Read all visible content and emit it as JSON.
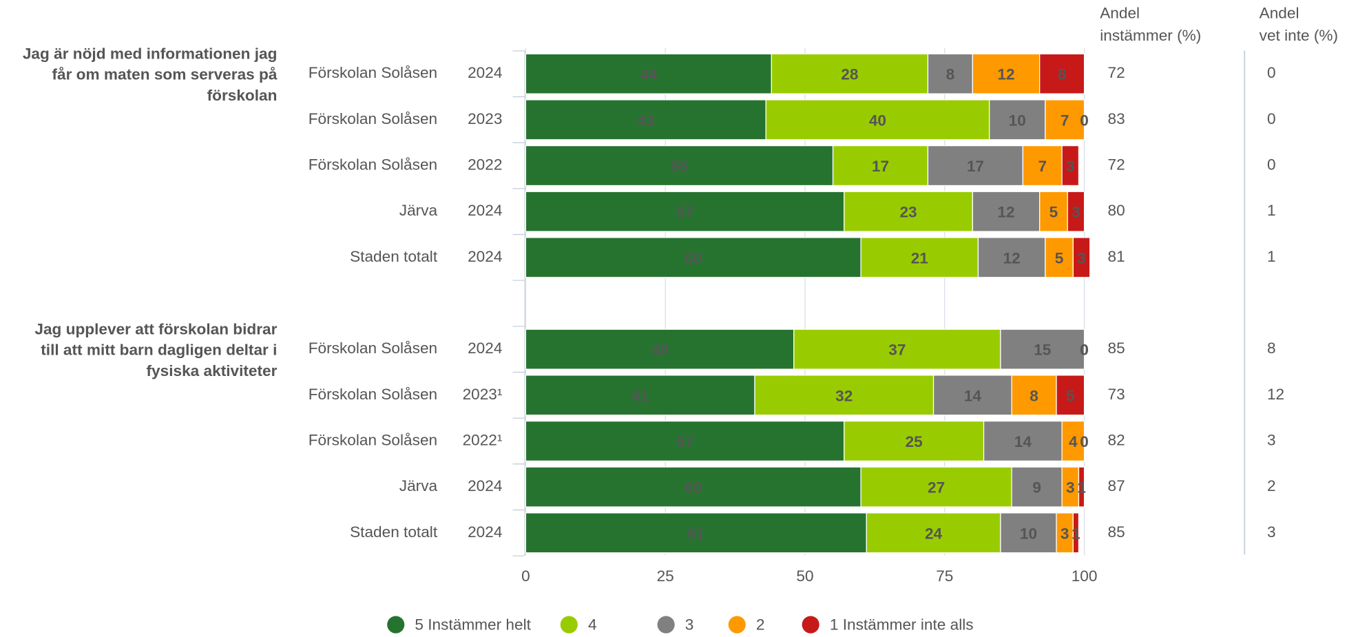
{
  "chart_data": {
    "type": "bar",
    "orientation": "horizontal",
    "stacked": true,
    "xlim": [
      0,
      100
    ],
    "xticks": [
      0,
      25,
      50,
      75,
      100
    ],
    "grid": true,
    "headers": [
      [
        "Andel",
        "instämmer (%)"
      ],
      [
        "Andel",
        "vet inte (%)"
      ]
    ],
    "series": [
      {
        "name": "5 Instämmer helt",
        "color": "#267330",
        "label_color": "#ffffff"
      },
      {
        "name": "4",
        "color": "#99cc00",
        "label_color": "#222222"
      },
      {
        "name": "3",
        "color": "#808080",
        "label_color": "#222222"
      },
      {
        "name": "2",
        "color": "#ff9900",
        "label_color": "#222222"
      },
      {
        "name": "1 Instämmer inte alls",
        "color": "#c81919",
        "label_color": "#ffffff"
      }
    ],
    "groups": [
      {
        "title": [
          "Jag är nöjd med informationen jag",
          "får om maten som serveras på",
          "förskolan"
        ],
        "rows": [
          {
            "label": "Förskolan Solåsen",
            "year": "2024",
            "values": [
              44,
              28,
              8,
              12,
              8
            ],
            "agree": 72,
            "dont_know": 0
          },
          {
            "label": "Förskolan Solåsen",
            "year": "2023",
            "values": [
              43,
              40,
              10,
              7,
              0
            ],
            "agree": 83,
            "dont_know": 0
          },
          {
            "label": "Förskolan Solåsen",
            "year": "2022",
            "values": [
              55,
              17,
              17,
              7,
              3
            ],
            "agree": 72,
            "dont_know": 0
          },
          {
            "label": "Järva",
            "year": "2024",
            "values": [
              57,
              23,
              12,
              5,
              3
            ],
            "agree": 80,
            "dont_know": 1
          },
          {
            "label": "Staden totalt",
            "year": "2024",
            "values": [
              60,
              21,
              12,
              5,
              3
            ],
            "agree": 81,
            "dont_know": 1
          }
        ]
      },
      {
        "title": [
          "Jag upplever att förskolan bidrar",
          "till att mitt barn dagligen deltar i",
          "fysiska aktiviteter"
        ],
        "rows": [
          {
            "label": "Förskolan Solåsen",
            "year": "2024",
            "values": [
              48,
              37,
              15,
              0,
              0
            ],
            "agree": 85,
            "dont_know": 8
          },
          {
            "label": "Förskolan Solåsen",
            "year": "2023¹",
            "values": [
              41,
              32,
              14,
              8,
              5
            ],
            "agree": 73,
            "dont_know": 12
          },
          {
            "label": "Förskolan Solåsen",
            "year": "2022¹",
            "values": [
              57,
              25,
              14,
              4,
              0
            ],
            "agree": 82,
            "dont_know": 3
          },
          {
            "label": "Järva",
            "year": "2024",
            "values": [
              60,
              27,
              9,
              3,
              1
            ],
            "agree": 87,
            "dont_know": 2
          },
          {
            "label": "Staden totalt",
            "year": "2024",
            "values": [
              61,
              24,
              10,
              3,
              1
            ],
            "agree": 85,
            "dont_know": 3
          }
        ]
      }
    ]
  }
}
